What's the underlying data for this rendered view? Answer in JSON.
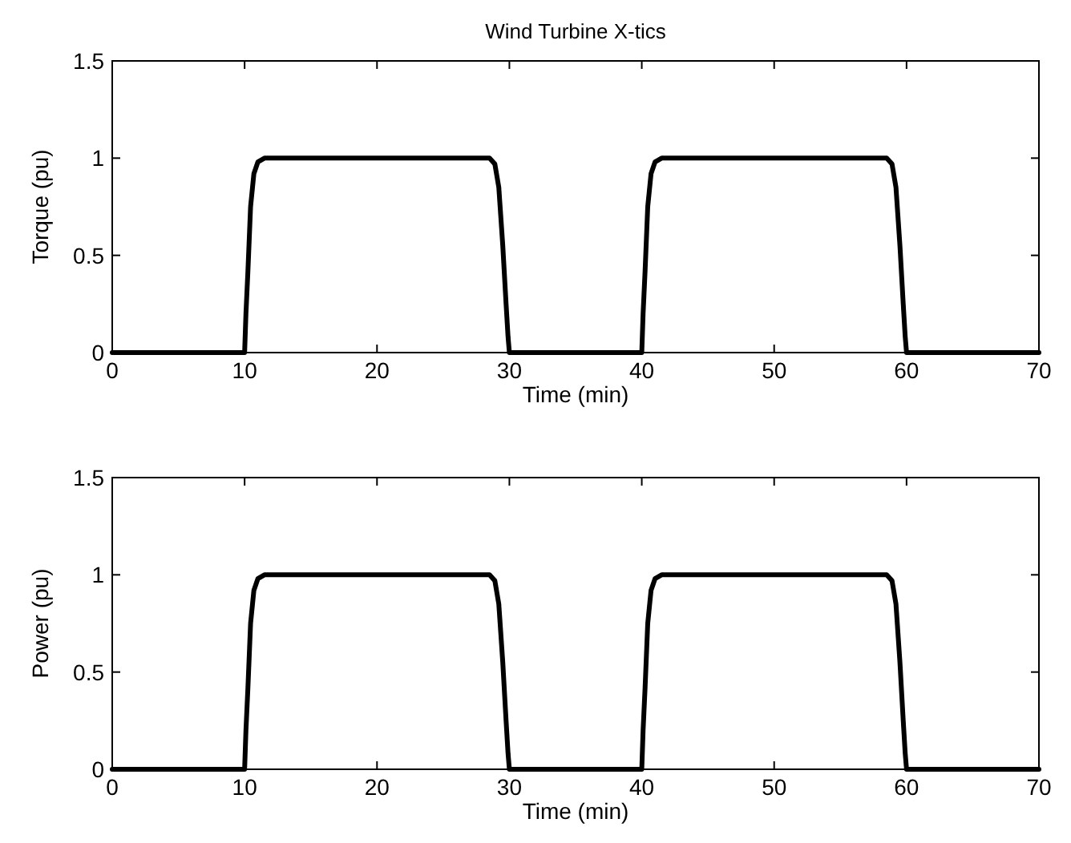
{
  "chart_data": [
    {
      "type": "line",
      "title": "Wind Turbine X-tics",
      "xlabel": "Time (min)",
      "ylabel": "Torque (pu)",
      "xlim": [
        0,
        70
      ],
      "xticks": [
        0,
        10,
        20,
        30,
        40,
        50,
        60,
        70
      ],
      "ylim": [
        0,
        1.5
      ],
      "yticks": [
        0,
        0.5,
        1,
        1.5
      ],
      "grid": false,
      "marker": "none",
      "line_style": "solid",
      "x": [
        0,
        10,
        10.1,
        10.25,
        10.45,
        10.7,
        11,
        11.5,
        28.5,
        28.9,
        29.2,
        29.5,
        29.75,
        29.9,
        30,
        40,
        40.1,
        40.25,
        40.45,
        40.7,
        41,
        41.5,
        58.5,
        58.9,
        59.2,
        59.5,
        59.75,
        59.9,
        60,
        70
      ],
      "series": [
        {
          "color": "#000000",
          "values": [
            0,
            0,
            0.2,
            0.42,
            0.75,
            0.92,
            0.98,
            1,
            1,
            0.97,
            0.85,
            0.55,
            0.25,
            0.08,
            0,
            0,
            0.2,
            0.42,
            0.75,
            0.92,
            0.98,
            1,
            1,
            0.97,
            0.85,
            0.55,
            0.25,
            0.08,
            0,
            0
          ]
        }
      ]
    },
    {
      "type": "line",
      "xlabel": "Time (min)",
      "ylabel": "Power (pu)",
      "xlim": [
        0,
        70
      ],
      "xticks": [
        0,
        10,
        20,
        30,
        40,
        50,
        60,
        70
      ],
      "ylim": [
        0,
        1.5
      ],
      "yticks": [
        0,
        0.5,
        1,
        1.5
      ],
      "grid": false,
      "marker": "none",
      "line_style": "solid",
      "x": [
        0,
        10,
        10.1,
        10.25,
        10.45,
        10.7,
        11,
        11.5,
        28.5,
        28.9,
        29.2,
        29.5,
        29.75,
        29.9,
        30,
        40,
        40.1,
        40.25,
        40.45,
        40.7,
        41,
        41.5,
        58.5,
        58.9,
        59.2,
        59.5,
        59.75,
        59.9,
        60,
        70
      ],
      "series": [
        {
          "color": "#000000",
          "values": [
            0,
            0,
            0.2,
            0.42,
            0.75,
            0.92,
            0.98,
            1,
            1,
            0.97,
            0.85,
            0.55,
            0.25,
            0.08,
            0,
            0,
            0.2,
            0.42,
            0.75,
            0.92,
            0.98,
            1,
            1,
            0.97,
            0.85,
            0.55,
            0.25,
            0.08,
            0,
            0
          ]
        }
      ]
    }
  ]
}
